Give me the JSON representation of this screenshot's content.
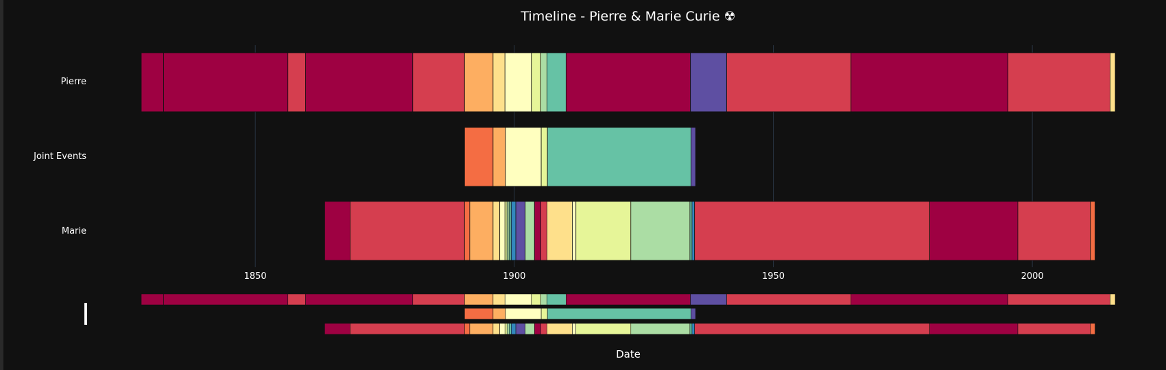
{
  "chart_data": {
    "type": "timeline",
    "title": "Timeline - Pierre & Marie Curie ☢",
    "xlabel": "Date",
    "xlim": [
      1828,
      2016
    ],
    "xticks": [
      1850,
      1900,
      1950,
      2000
    ],
    "grid": true,
    "rangeslider": true,
    "rows": [
      "Pierre",
      "Joint Events",
      "Marie"
    ],
    "segments": [
      {
        "row": "Pierre",
        "start": 1828.0,
        "end": 1832.3,
        "color": "#9e0142"
      },
      {
        "row": "Pierre",
        "start": 1832.3,
        "end": 1856.3,
        "color": "#9e0142"
      },
      {
        "row": "Pierre",
        "start": 1856.3,
        "end": 1859.7,
        "color": "#d53e4f"
      },
      {
        "row": "Pierre",
        "start": 1859.7,
        "end": 1880.4,
        "color": "#9e0142"
      },
      {
        "row": "Pierre",
        "start": 1880.4,
        "end": 1890.4,
        "color": "#d53e4f"
      },
      {
        "row": "Pierre",
        "start": 1890.4,
        "end": 1895.9,
        "color": "#fdae61"
      },
      {
        "row": "Pierre",
        "start": 1895.9,
        "end": 1898.2,
        "color": "#fee08b"
      },
      {
        "row": "Pierre",
        "start": 1898.2,
        "end": 1903.3,
        "color": "#ffffbf"
      },
      {
        "row": "Pierre",
        "start": 1903.3,
        "end": 1905.1,
        "color": "#e6f598"
      },
      {
        "row": "Pierre",
        "start": 1905.1,
        "end": 1906.3,
        "color": "#abdda4"
      },
      {
        "row": "Pierre",
        "start": 1906.3,
        "end": 1910.0,
        "color": "#66c2a5"
      },
      {
        "row": "Pierre",
        "start": 1910.0,
        "end": 1934.0,
        "color": "#9e0142"
      },
      {
        "row": "Pierre",
        "start": 1934.0,
        "end": 1941.0,
        "color": "#5e4fa2"
      },
      {
        "row": "Pierre",
        "start": 1941.0,
        "end": 1965.0,
        "color": "#d53e4f"
      },
      {
        "row": "Pierre",
        "start": 1965.0,
        "end": 1995.3,
        "color": "#9e0142"
      },
      {
        "row": "Pierre",
        "start": 1995.3,
        "end": 2015.0,
        "color": "#d53e4f"
      },
      {
        "row": "Pierre",
        "start": 2015.0,
        "end": 2016.0,
        "color": "#fee08b"
      },
      {
        "row": "Joint Events",
        "start": 1890.4,
        "end": 1895.9,
        "color": "#f46d43"
      },
      {
        "row": "Joint Events",
        "start": 1895.9,
        "end": 1898.3,
        "color": "#fdae61"
      },
      {
        "row": "Joint Events",
        "start": 1898.3,
        "end": 1905.2,
        "color": "#ffffbf"
      },
      {
        "row": "Joint Events",
        "start": 1905.2,
        "end": 1906.4,
        "color": "#e6f598"
      },
      {
        "row": "Joint Events",
        "start": 1906.4,
        "end": 1934.1,
        "color": "#66c2a5"
      },
      {
        "row": "Joint Events",
        "start": 1934.1,
        "end": 1935.0,
        "color": "#5e4fa2"
      },
      {
        "row": "Marie",
        "start": 1863.4,
        "end": 1868.3,
        "color": "#9e0142"
      },
      {
        "row": "Marie",
        "start": 1868.3,
        "end": 1890.4,
        "color": "#d53e4f"
      },
      {
        "row": "Marie",
        "start": 1890.4,
        "end": 1891.4,
        "color": "#f46d43"
      },
      {
        "row": "Marie",
        "start": 1891.4,
        "end": 1895.9,
        "color": "#fdae61"
      },
      {
        "row": "Marie",
        "start": 1895.9,
        "end": 1897.2,
        "color": "#fee08b"
      },
      {
        "row": "Marie",
        "start": 1897.2,
        "end": 1898.2,
        "color": "#ffffbf"
      },
      {
        "row": "Marie",
        "start": 1898.2,
        "end": 1898.6,
        "color": "#e6f598"
      },
      {
        "row": "Marie",
        "start": 1898.6,
        "end": 1899.0,
        "color": "#abdda4"
      },
      {
        "row": "Marie",
        "start": 1899.0,
        "end": 1899.4,
        "color": "#66c2a5"
      },
      {
        "row": "Marie",
        "start": 1899.4,
        "end": 1900.3,
        "color": "#3288bd"
      },
      {
        "row": "Marie",
        "start": 1900.3,
        "end": 1902.1,
        "color": "#5e4fa2"
      },
      {
        "row": "Marie",
        "start": 1902.1,
        "end": 1903.9,
        "color": "#abdda4"
      },
      {
        "row": "Marie",
        "start": 1903.9,
        "end": 1905.1,
        "color": "#9e0142"
      },
      {
        "row": "Marie",
        "start": 1905.1,
        "end": 1906.3,
        "color": "#d53e4f"
      },
      {
        "row": "Marie",
        "start": 1906.3,
        "end": 1911.2,
        "color": "#fee08b"
      },
      {
        "row": "Marie",
        "start": 1911.2,
        "end": 1911.9,
        "color": "#ffffbf"
      },
      {
        "row": "Marie",
        "start": 1911.9,
        "end": 1922.5,
        "color": "#e6f598"
      },
      {
        "row": "Marie",
        "start": 1922.5,
        "end": 1933.9,
        "color": "#abdda4"
      },
      {
        "row": "Marie",
        "start": 1933.9,
        "end": 1934.3,
        "color": "#66c2a5"
      },
      {
        "row": "Marie",
        "start": 1934.3,
        "end": 1934.8,
        "color": "#3288bd"
      },
      {
        "row": "Marie",
        "start": 1934.8,
        "end": 1980.2,
        "color": "#d53e4f"
      },
      {
        "row": "Marie",
        "start": 1980.2,
        "end": 1997.2,
        "color": "#9e0142"
      },
      {
        "row": "Marie",
        "start": 1997.2,
        "end": 2011.2,
        "color": "#d53e4f"
      },
      {
        "row": "Marie",
        "start": 2011.2,
        "end": 2012.1,
        "color": "#f46d43"
      }
    ]
  }
}
